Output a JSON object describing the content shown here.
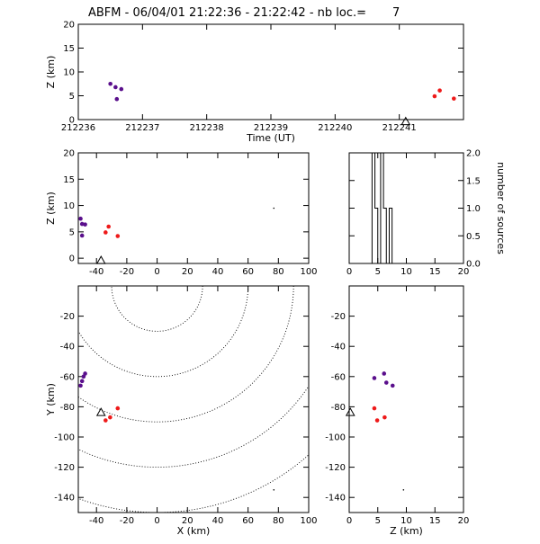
{
  "title": "ABFM - 06/04/01 21:22:36 - 21:22:42 - nb loc.=       7",
  "colors": {
    "purple": "#5a0f8c",
    "red": "#ee1a1a",
    "axis": "#000000"
  },
  "chart_data": [
    {
      "id": "time-z",
      "type": "scatter",
      "xlabel": "Time (UT)",
      "ylabel": "Z (km)",
      "xlim": [
        212236,
        212242
      ],
      "ylim": [
        0,
        20
      ],
      "xticks": [
        "212236",
        "212237",
        "212238",
        "212239",
        "212240",
        "212241"
      ],
      "yticks": [
        "0",
        "5",
        "10",
        "15",
        "20"
      ],
      "series": [
        {
          "color": "purple",
          "points": [
            [
              212236.5,
              7.5
            ],
            [
              212236.58,
              6.8
            ],
            [
              212236.6,
              4.3
            ],
            [
              212236.67,
              6.4
            ]
          ]
        },
        {
          "color": "red",
          "points": [
            [
              212241.55,
              4.9
            ],
            [
              212241.63,
              6.1
            ],
            [
              212241.85,
              4.4
            ]
          ]
        }
      ],
      "markers": [
        {
          "symbol": "triangle",
          "x": 212241.1,
          "y": -0.5
        }
      ]
    },
    {
      "id": "x-z",
      "type": "scatter",
      "xlabel": "",
      "ylabel": "Z (km)",
      "xlim": [
        -52,
        100
      ],
      "ylim": [
        -1,
        20
      ],
      "xticks": [
        "-40",
        "-20",
        "0",
        "20",
        "40",
        "60",
        "80",
        "100"
      ],
      "yticks": [
        "0",
        "5",
        "10",
        "15",
        "20"
      ],
      "series": [
        {
          "color": "purple",
          "points": [
            [
              -50.5,
              7.5
            ],
            [
              -49.5,
              6.5
            ],
            [
              -47.5,
              6.4
            ],
            [
              -49.5,
              4.3
            ]
          ]
        },
        {
          "color": "red",
          "points": [
            [
              -34,
              4.9
            ],
            [
              -32,
              6.0
            ],
            [
              -26,
              4.2
            ]
          ]
        }
      ],
      "markers": [
        {
          "symbol": "triangle",
          "x": -37,
          "y": -0.5
        },
        {
          "symbol": "dot",
          "x": 77,
          "y": 9.5
        }
      ]
    },
    {
      "id": "histogram",
      "type": "bar",
      "xlabel": "",
      "ylabel": "number of sources",
      "xlim": [
        0,
        20
      ],
      "ylim": [
        0,
        2
      ],
      "xticks": [
        "0",
        "5",
        "10",
        "15",
        "20"
      ],
      "yticks": [
        "0.0",
        "0.5",
        "1.0",
        "1.5",
        "2.0"
      ],
      "bins": [
        {
          "z": 4.25,
          "count": 2
        },
        {
          "z": 4.75,
          "count": 1
        },
        {
          "z": 5.25,
          "count": 0
        },
        {
          "z": 5.75,
          "count": 2
        },
        {
          "z": 6.25,
          "count": 1
        },
        {
          "z": 6.75,
          "count": 0
        },
        {
          "z": 7.25,
          "count": 1
        }
      ],
      "bin_width": 0.5
    },
    {
      "id": "x-y",
      "type": "scatter",
      "xlabel": "X (km)",
      "ylabel": "Y (km)",
      "xlim": [
        -52,
        100
      ],
      "ylim": [
        -150,
        0
      ],
      "xticks": [
        "-40",
        "-20",
        "0",
        "20",
        "40",
        "60",
        "80",
        "100"
      ],
      "yticks": [
        "-140",
        "-120",
        "-100",
        "-80",
        "-60",
        "-40",
        "-20"
      ],
      "contour_radii": [
        30,
        60,
        90,
        120,
        150
      ],
      "contour_center": [
        0,
        0
      ],
      "series": [
        {
          "color": "purple",
          "points": [
            [
              -50.5,
              -66
            ],
            [
              -49.5,
              -63
            ],
            [
              -48.5,
              -60
            ],
            [
              -47.5,
              -58
            ]
          ]
        },
        {
          "color": "red",
          "points": [
            [
              -34,
              -89
            ],
            [
              -31,
              -87
            ],
            [
              -26,
              -81
            ]
          ]
        }
      ],
      "markers": [
        {
          "symbol": "triangle",
          "x": -37,
          "y": -84
        },
        {
          "symbol": "dot",
          "x": 77,
          "y": -135
        }
      ]
    },
    {
      "id": "z-y",
      "type": "scatter",
      "xlabel": "Z (km)",
      "ylabel": "",
      "xlim": [
        0,
        20
      ],
      "ylim": [
        -150,
        0
      ],
      "xticks": [
        "0",
        "5",
        "10",
        "15",
        "20"
      ],
      "yticks": [
        "-140",
        "-120",
        "-100",
        "-80",
        "-60",
        "-40",
        "-20"
      ],
      "series": [
        {
          "color": "purple",
          "points": [
            [
              4.4,
              -61
            ],
            [
              6.1,
              -58
            ],
            [
              6.5,
              -64
            ],
            [
              7.6,
              -66
            ]
          ]
        },
        {
          "color": "red",
          "points": [
            [
              4.4,
              -81
            ],
            [
              4.9,
              -89
            ],
            [
              6.2,
              -87
            ]
          ]
        }
      ],
      "markers": [
        {
          "symbol": "triangle",
          "x": 0.2,
          "y": -84
        },
        {
          "symbol": "dot",
          "x": 9.5,
          "y": -135
        }
      ]
    }
  ]
}
